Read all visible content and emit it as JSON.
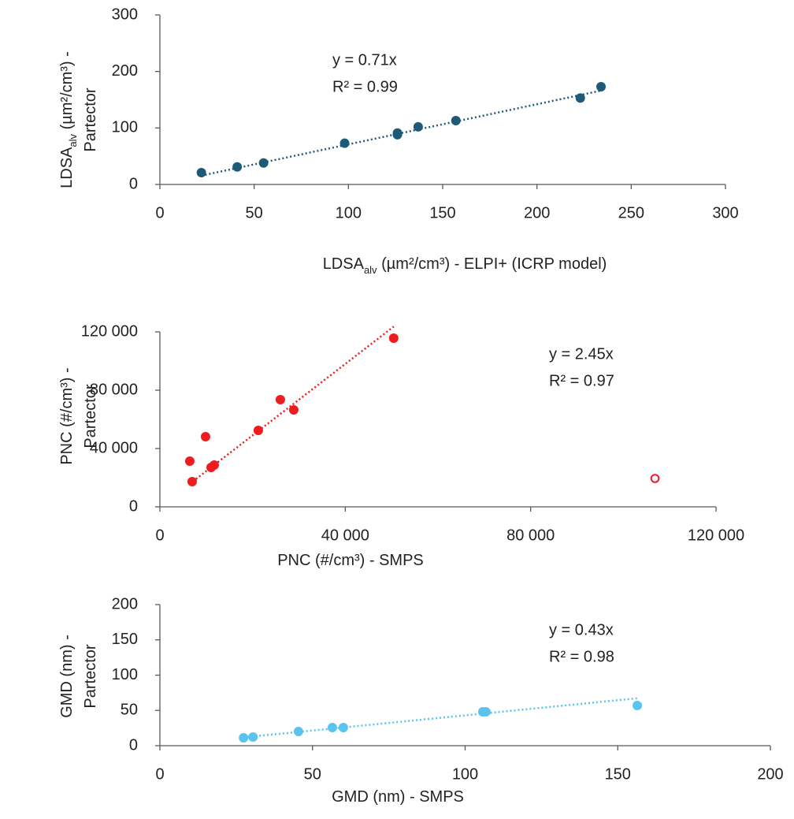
{
  "chart_data": [
    {
      "type": "scatter",
      "xlabel": [
        [
          "LDSA",
          "alv",
          " (µm²/cm³) - ELPI+ (ICRP model)"
        ]
      ],
      "ylabel": [
        [
          "LDSA",
          "alv",
          " (µm²/cm³) -"
        ],
        [
          "Partector"
        ]
      ],
      "annotations": [
        "y = 0.71x",
        "R² = 0.99"
      ],
      "xlim": [
        0,
        300
      ],
      "ylim": [
        0,
        300
      ],
      "xticks": [
        0,
        50,
        100,
        150,
        200,
        250,
        300
      ],
      "yticks": [
        0,
        100,
        200,
        300
      ],
      "series": [
        {
          "color": "#1d5a78",
          "marker": "filled",
          "x": [
            22,
            41,
            55,
            98,
            126,
            126,
            137,
            157,
            223,
            234
          ],
          "values": [
            21,
            31,
            38,
            73,
            88,
            91,
            102,
            113,
            153,
            173
          ],
          "trendline": {
            "slope": 0.71
          }
        }
      ]
    },
    {
      "type": "scatter",
      "xlabel": [
        [
          "PNC (#/cm³) - SMPS"
        ]
      ],
      "ylabel": [
        [
          "PNC (#/cm³) -"
        ],
        [
          "Partector"
        ]
      ],
      "annotations": [
        "y = 2.45x",
        "R² = 0.97"
      ],
      "xlim": [
        0,
        120000
      ],
      "ylim": [
        0,
        120000
      ],
      "xticks": [
        0,
        {
          "value": 40000,
          "label": "40 000"
        },
        {
          "value": 80000,
          "label": "80 000"
        },
        {
          "value": 120000,
          "label": "120 000"
        }
      ],
      "yticks": [
        0,
        {
          "value": 40000,
          "label": "40 000"
        },
        {
          "value": 80000,
          "label": "80 000"
        },
        {
          "value": 120000,
          "label": "120 000"
        }
      ],
      "series": [
        {
          "color": "#ee1c1c",
          "marker": "filled",
          "x": [
            6450,
            6960,
            9850,
            11040,
            11720,
            21230,
            25990,
            28880,
            50450
          ],
          "values": [
            31350,
            17300,
            48100,
            27000,
            28650,
            52430,
            73500,
            66500,
            115700
          ],
          "trendline": {
            "slope": 2.45
          }
        },
        {
          "color": "#ee1c1c",
          "marker": "open",
          "x": [
            106840
          ],
          "values": [
            19460
          ]
        }
      ]
    },
    {
      "type": "scatter",
      "xlabel": [
        [
          "GMD (nm) - SMPS"
        ]
      ],
      "ylabel": [
        [
          "GMD (nm) -"
        ],
        [
          "Partector"
        ]
      ],
      "annotations": [
        "y = 0.43x",
        "R² = 0.98"
      ],
      "xlim": [
        0,
        200
      ],
      "ylim": [
        0,
        200
      ],
      "xticks": [
        0,
        50,
        100,
        150,
        200
      ],
      "yticks": [
        0,
        50,
        100,
        150,
        200
      ],
      "series": [
        {
          "color": "#5bc3ef",
          "marker": "filled",
          "x": [
            27.4,
            30.5,
            45.4,
            56.5,
            60.1,
            105.8,
            106.8,
            156.4
          ],
          "values": [
            11.2,
            12.3,
            20.1,
            25.7,
            25.7,
            48,
            48,
            57
          ],
          "trendline": {
            "slope": 0.43
          }
        }
      ]
    }
  ]
}
